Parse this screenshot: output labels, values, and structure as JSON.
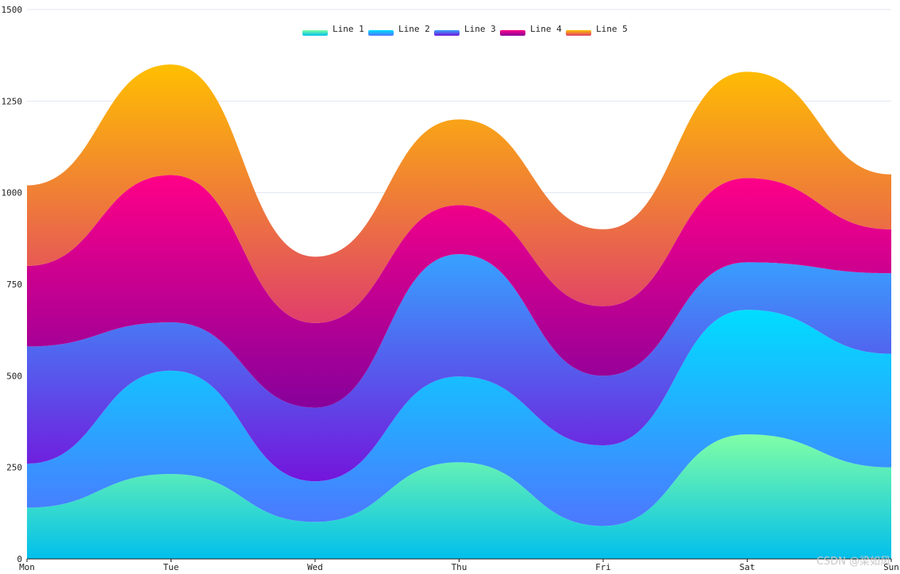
{
  "chart_data": {
    "type": "area",
    "stacked": true,
    "smooth": true,
    "title": "",
    "xlabel": "",
    "ylabel": "",
    "categories": [
      "Mon",
      "Tue",
      "Wed",
      "Thu",
      "Fri",
      "Sat",
      "Sun"
    ],
    "ylim": [
      0,
      1500
    ],
    "yticks": [
      "0",
      "250",
      "500",
      "750",
      "1000",
      "1250",
      "1500"
    ],
    "legend_position": "top-center",
    "series": [
      {
        "name": "Line 1",
        "values": [
          140,
          232,
          101,
          264,
          90,
          340,
          250
        ],
        "gradient": [
          "#80ffa5",
          "#01bfec"
        ]
      },
      {
        "name": "Line 2",
        "values": [
          120,
          282,
          111,
          234,
          220,
          340,
          310
        ],
        "gradient": [
          "#00ddff",
          "#4d77ff"
        ]
      },
      {
        "name": "Line 3",
        "values": [
          320,
          132,
          201,
          334,
          190,
          130,
          220
        ],
        "gradient": [
          "#37a2ff",
          "#7415db"
        ]
      },
      {
        "name": "Line 4",
        "values": [
          220,
          402,
          231,
          134,
          190,
          230,
          120
        ],
        "gradient": [
          "#ff0087",
          "#87009b"
        ]
      },
      {
        "name": "Line 5",
        "values": [
          220,
          302,
          181,
          234,
          210,
          290,
          150
        ],
        "gradient": [
          "#ffbf00",
          "#e03e6c"
        ]
      }
    ]
  },
  "watermark": "CSDN @梁如风"
}
